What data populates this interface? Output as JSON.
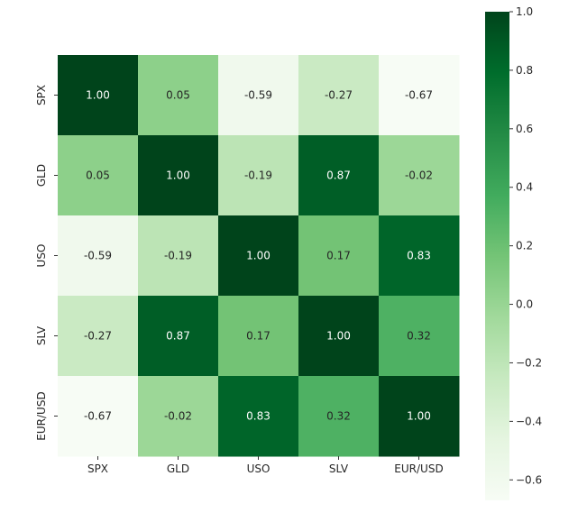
{
  "chart_data": {
    "type": "heatmap",
    "title": "",
    "xlabel": "",
    "ylabel": "",
    "x_labels": [
      "SPX",
      "GLD",
      "USO",
      "SLV",
      "EUR/USD"
    ],
    "y_labels": [
      "SPX",
      "GLD",
      "USO",
      "SLV",
      "EUR/USD"
    ],
    "values": [
      [
        1.0,
        0.05,
        -0.59,
        -0.27,
        -0.67
      ],
      [
        0.05,
        1.0,
        -0.19,
        0.87,
        -0.02
      ],
      [
        -0.59,
        -0.19,
        1.0,
        0.17,
        0.83
      ],
      [
        -0.27,
        0.87,
        0.17,
        1.0,
        0.32
      ],
      [
        -0.67,
        -0.02,
        0.83,
        0.32,
        1.0
      ]
    ],
    "annotation_labels": [
      [
        "1.00",
        "0.05",
        "-0.59",
        "-0.27",
        "-0.67"
      ],
      [
        "0.05",
        "1.00",
        "-0.19",
        "0.87",
        "-0.02"
      ],
      [
        "-0.59",
        "-0.19",
        "1.00",
        "0.17",
        "0.83"
      ],
      [
        "-0.27",
        "0.87",
        "0.17",
        "1.00",
        "0.32"
      ],
      [
        "-0.67",
        "-0.02",
        "0.83",
        "0.32",
        "1.00"
      ]
    ],
    "colormap": "Greens",
    "colorbar": {
      "range": [
        -0.67,
        1.0
      ],
      "ticks": [
        1.0,
        0.8,
        0.6,
        0.4,
        0.2,
        0.0,
        -0.2,
        -0.4,
        -0.6
      ],
      "tick_labels": [
        "1.0",
        "0.8",
        "0.6",
        "0.4",
        "0.2",
        "0.0",
        "−0.2",
        "−0.4",
        "−0.6"
      ]
    }
  },
  "colors": {
    "text_dark": "#262626",
    "text_light": "#ffffff",
    "axis": "#333333",
    "greens_stops": [
      "#f7fcf5",
      "#e5f5e0",
      "#c7e9c0",
      "#a1d99b",
      "#74c476",
      "#41ab5d",
      "#238b45",
      "#006d2c",
      "#00441b"
    ]
  }
}
